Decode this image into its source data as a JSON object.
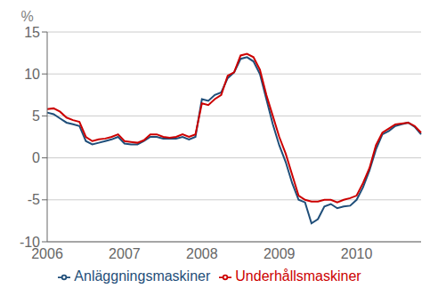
{
  "chart_data": {
    "type": "line",
    "ylabel": "%",
    "categories": [
      "2006",
      null,
      null,
      null,
      null,
      null,
      null,
      null,
      null,
      null,
      null,
      null,
      "2007",
      null,
      null,
      null,
      null,
      null,
      null,
      null,
      null,
      null,
      null,
      null,
      "2008",
      null,
      null,
      null,
      null,
      null,
      null,
      null,
      null,
      null,
      null,
      null,
      "2009",
      null,
      null,
      null,
      null,
      null,
      null,
      null,
      null,
      null,
      null,
      null,
      "2010",
      null,
      null,
      null,
      null,
      null,
      null,
      null,
      null,
      null,
      null
    ],
    "series": [
      {
        "name": "Anläggningsmaskiner",
        "color": "#1f4e79",
        "values": [
          5.4,
          5.2,
          4.7,
          4.2,
          4.0,
          3.8,
          2.0,
          1.6,
          1.8,
          2.0,
          2.2,
          2.5,
          1.7,
          1.6,
          1.6,
          2.0,
          2.5,
          2.5,
          2.3,
          2.3,
          2.3,
          2.5,
          2.2,
          2.5,
          7.0,
          6.8,
          7.5,
          7.8,
          9.5,
          10.2,
          11.8,
          12.0,
          11.5,
          10.0,
          7.0,
          4.0,
          1.5,
          -0.5,
          -3.0,
          -5.0,
          -5.3,
          -7.8,
          -7.3,
          -5.8,
          -5.5,
          -6.0,
          -5.8,
          -5.7,
          -5.0,
          -3.5,
          -1.5,
          1.0,
          2.8,
          3.2,
          3.8,
          4.0,
          4.2,
          3.7,
          2.8
        ]
      },
      {
        "name": "Underhållsmaskiner",
        "color": "#cc0000",
        "values": [
          5.8,
          5.9,
          5.5,
          4.8,
          4.5,
          4.3,
          2.5,
          2.0,
          2.2,
          2.3,
          2.5,
          2.8,
          2.0,
          1.9,
          1.8,
          2.1,
          2.8,
          2.8,
          2.5,
          2.4,
          2.5,
          2.8,
          2.5,
          2.8,
          6.5,
          6.3,
          7.0,
          7.5,
          9.8,
          10.2,
          12.2,
          12.4,
          12.0,
          10.5,
          7.5,
          5.0,
          2.5,
          0.5,
          -2.0,
          -4.5,
          -5.0,
          -5.2,
          -5.2,
          -5.0,
          -5.0,
          -5.3,
          -5.0,
          -4.8,
          -4.5,
          -3.0,
          -1.2,
          1.5,
          3.0,
          3.5,
          4.0,
          4.1,
          4.2,
          3.8,
          3.0
        ]
      }
    ],
    "ylim": [
      -10,
      15
    ],
    "yticks": [
      -10,
      -5,
      0,
      5,
      10,
      15
    ],
    "grid": true,
    "legend": "bottom"
  }
}
